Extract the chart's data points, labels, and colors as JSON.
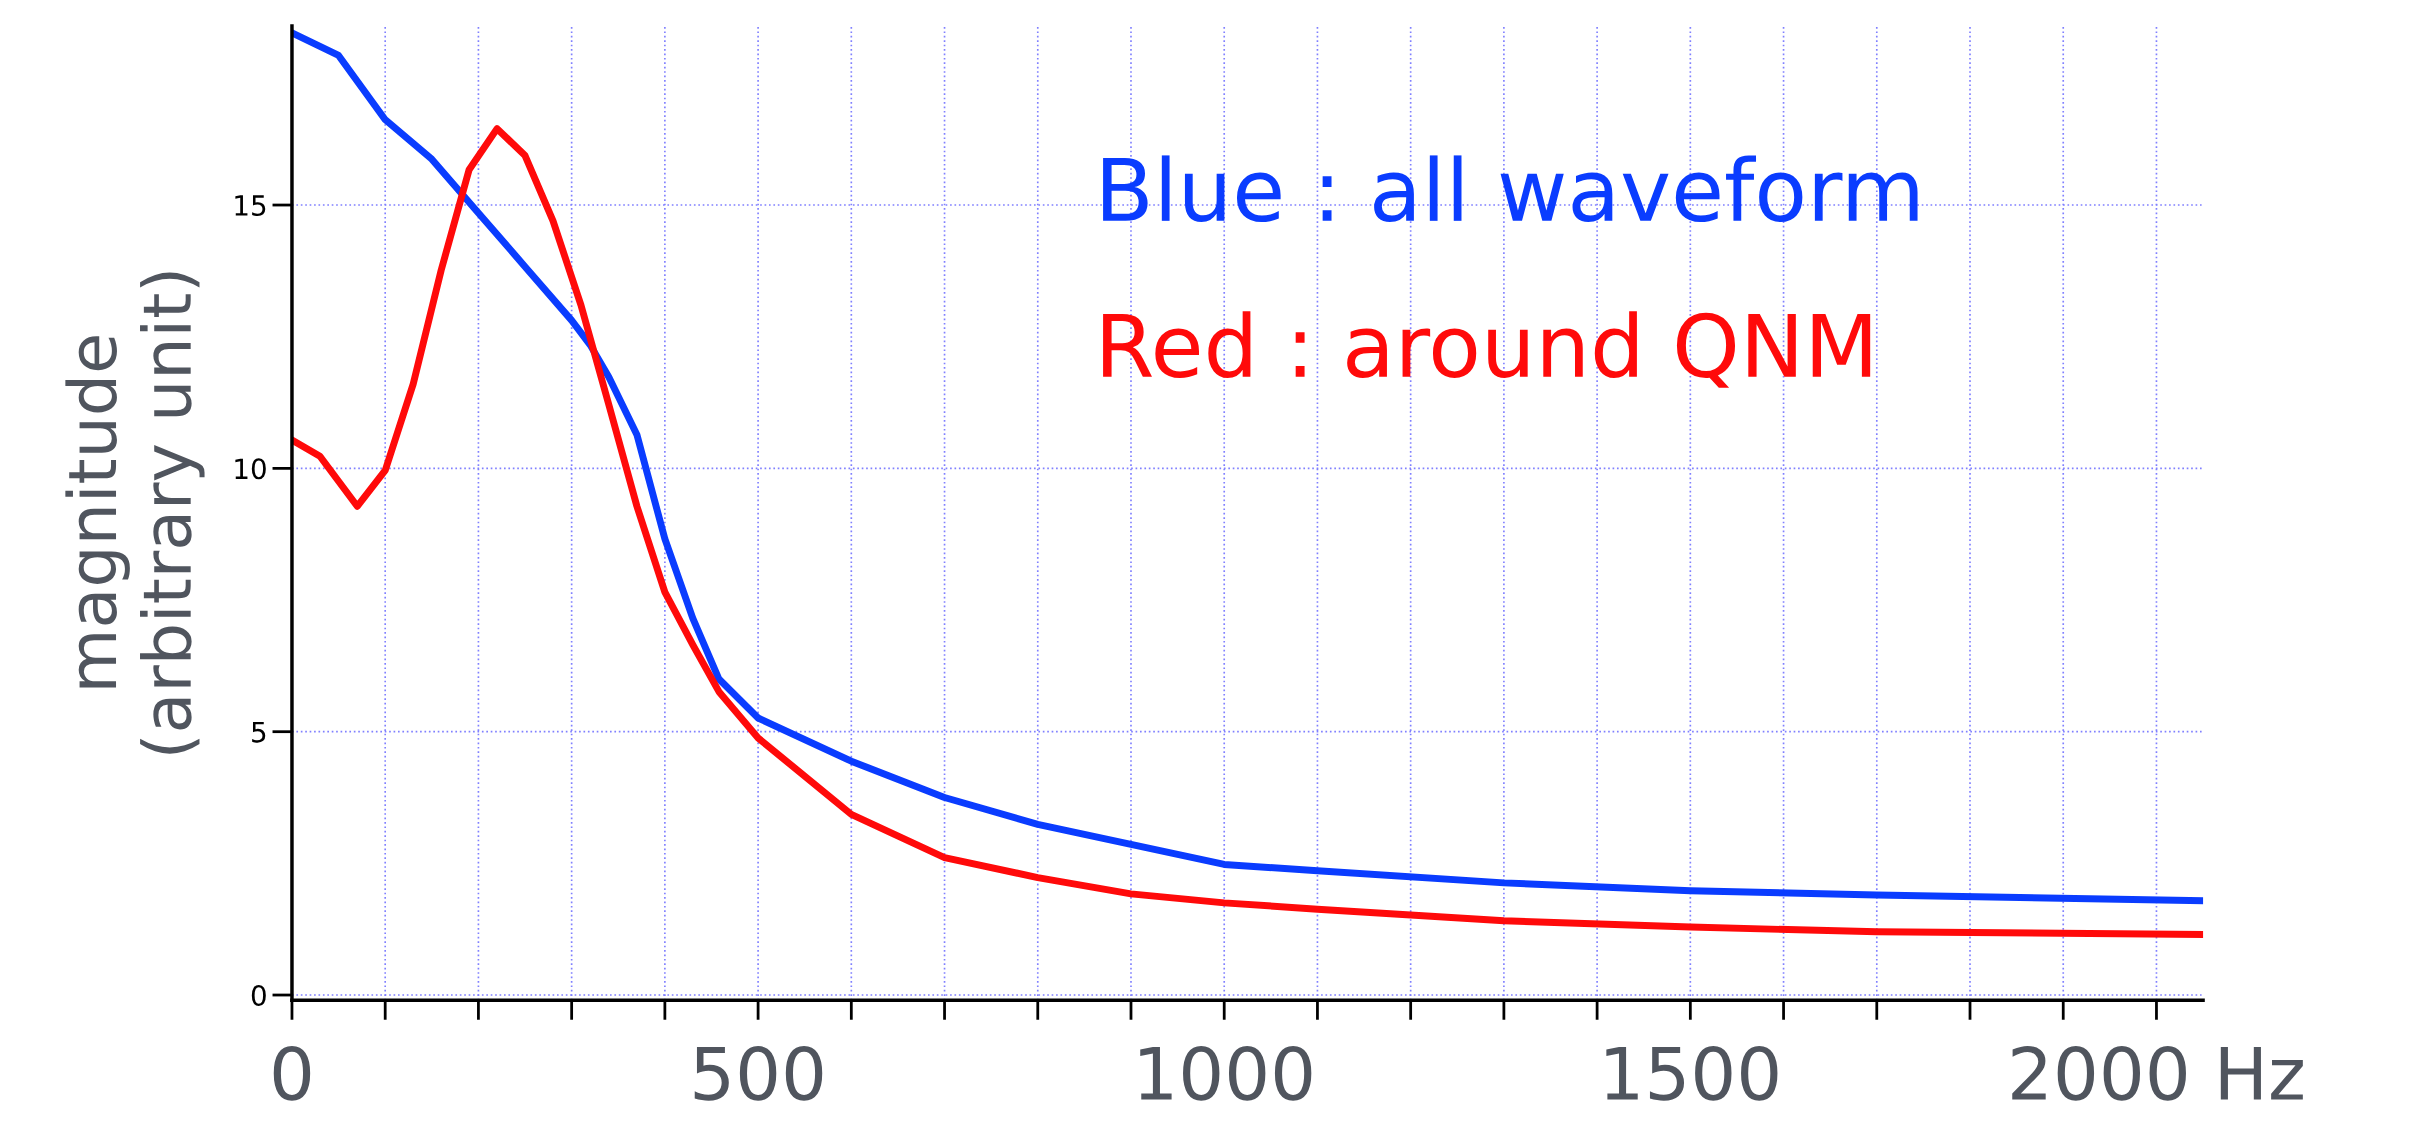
{
  "chart_data": {
    "type": "line",
    "ylabel": "magnitude\n(arbitrary unit)",
    "xlim": [
      0,
      2050
    ],
    "ylim": [
      -0.1,
      18.4
    ],
    "xticks": [
      0,
      {
        "value": 100,
        "label": null
      },
      {
        "value": 200,
        "label": null
      },
      {
        "value": 300,
        "label": null
      },
      {
        "value": 400,
        "label": null
      },
      500,
      {
        "value": 600,
        "label": null
      },
      {
        "value": 700,
        "label": null
      },
      {
        "value": 800,
        "label": null
      },
      {
        "value": 900,
        "label": null
      },
      1000,
      {
        "value": 1100,
        "label": null
      },
      {
        "value": 1200,
        "label": null
      },
      {
        "value": 1300,
        "label": null
      },
      {
        "value": 1400,
        "label": null
      },
      1500,
      {
        "value": 1600,
        "label": null
      },
      {
        "value": 1700,
        "label": null
      },
      {
        "value": 1800,
        "label": null
      },
      {
        "value": 1900,
        "label": null
      },
      {
        "value": 2000,
        "label": "2000 Hz"
      }
    ],
    "yticks": [
      0,
      5,
      10,
      15
    ],
    "grid": true,
    "legend": false,
    "line_style": "solid",
    "marker": "none",
    "series": [
      {
        "name": "Blue : all waveform",
        "color": "#0a3cff",
        "x": [
          0,
          50,
          100,
          150,
          200,
          250,
          300,
          320,
          340,
          370,
          400,
          430,
          458,
          500,
          600,
          700,
          800,
          900,
          1000,
          1100,
          1300,
          1500,
          1700,
          2050
        ],
        "values": [
          18.27,
          17.84,
          16.62,
          15.87,
          14.85,
          13.83,
          12.81,
          12.34,
          11.73,
          10.64,
          8.66,
          7.15,
          6.0,
          5.26,
          4.44,
          3.75,
          3.24,
          2.86,
          2.48,
          2.36,
          2.13,
          1.98,
          1.9,
          1.79
        ]
      },
      {
        "name": "Red : around QNM",
        "color": "#ff0a0a",
        "x": [
          0,
          30,
          70,
          100,
          130,
          160,
          190,
          220,
          250,
          280,
          310,
          340,
          370,
          400,
          430,
          458,
          500,
          600,
          700,
          800,
          900,
          1000,
          1100,
          1300,
          1500,
          1700,
          2050
        ],
        "values": [
          10.54,
          10.23,
          9.28,
          9.96,
          11.6,
          13.76,
          15.67,
          16.45,
          15.94,
          14.7,
          13.1,
          11.2,
          9.28,
          7.65,
          6.65,
          5.76,
          4.88,
          3.43,
          2.61,
          2.23,
          1.92,
          1.75,
          1.63,
          1.41,
          1.29,
          1.2,
          1.15
        ]
      }
    ]
  }
}
